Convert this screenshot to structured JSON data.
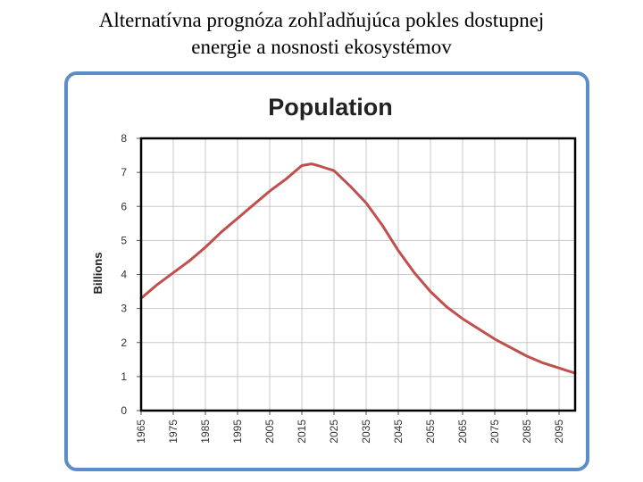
{
  "slide": {
    "title_line1": "Alternatívna prognóza zohľadňujúca pokles dostupnej",
    "title_line2": "energie a nosnosti ekosystémov"
  },
  "colors": {
    "frame": "#5b8ec8",
    "series": "#c0504d",
    "grid": "#c8c8c8",
    "plot_border": "#000000"
  },
  "chart_data": {
    "type": "line",
    "title": "Population",
    "ylabel": "Billions",
    "xlabel": "",
    "xlim": [
      1965,
      2100
    ],
    "ylim": [
      0,
      8
    ],
    "yticks": [
      "0",
      "1",
      "2",
      "3",
      "4",
      "5",
      "6",
      "7",
      "8"
    ],
    "xticks": [
      "1965",
      "1975",
      "1985",
      "1995",
      "2005",
      "2015",
      "2025",
      "2035",
      "2045",
      "2055",
      "2065",
      "2075",
      "2085",
      "2095"
    ],
    "grid": true,
    "legend": "none",
    "series": [
      {
        "x": [
          1965,
          1970,
          1975,
          1980,
          1985,
          1990,
          1995,
          2000,
          2005,
          2010,
          2015,
          2018,
          2020,
          2025,
          2030,
          2035,
          2040,
          2045,
          2050,
          2055,
          2060,
          2065,
          2070,
          2075,
          2080,
          2085,
          2090,
          2095,
          2100
        ],
        "y": [
          3.3,
          3.7,
          4.05,
          4.4,
          4.8,
          5.25,
          5.65,
          6.05,
          6.45,
          6.8,
          7.2,
          7.25,
          7.2,
          7.05,
          6.6,
          6.1,
          5.45,
          4.7,
          4.05,
          3.5,
          3.05,
          2.7,
          2.4,
          2.1,
          1.85,
          1.6,
          1.4,
          1.25,
          1.1
        ]
      }
    ]
  }
}
